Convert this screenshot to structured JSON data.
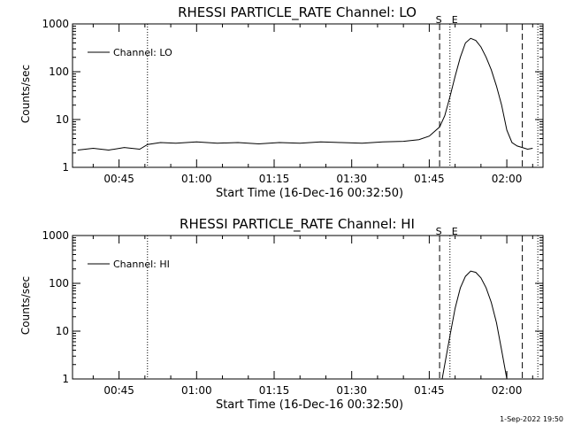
{
  "footer_timestamp": "1-Sep-2022 19:50",
  "chart_data": [
    {
      "type": "line",
      "title": "RHESSI PARTICLE_RATE Channel: LO",
      "xlabel": "Start Time (16-Dec-16 00:32:50)",
      "ylabel": "Counts/sec",
      "yscale": "log",
      "xlim": [
        "00:36",
        "02:07"
      ],
      "ylim": [
        1,
        1000
      ],
      "x_ticks": [
        "00:45",
        "01:00",
        "01:15",
        "01:30",
        "01:45",
        "02:00"
      ],
      "y_ticks": [
        "1",
        "10",
        "100",
        "1000"
      ],
      "grid": false,
      "legend_position": "top-left",
      "series": [
        {
          "name": "Channel: LO",
          "x": [
            "00:37",
            "00:40",
            "00:43",
            "00:46",
            "00:49",
            "00:50:30",
            "00:53",
            "00:56",
            "01:00",
            "01:04",
            "01:08",
            "01:12",
            "01:16",
            "01:20",
            "01:24",
            "01:28",
            "01:32",
            "01:36",
            "01:40",
            "01:43",
            "01:45",
            "01:47",
            "01:48",
            "01:49",
            "01:50",
            "01:51",
            "01:52",
            "01:53",
            "01:54",
            "01:55",
            "01:56",
            "01:57",
            "01:58",
            "01:59",
            "02:00",
            "02:01",
            "02:02",
            "02:03",
            "02:04",
            "02:05"
          ],
          "y": [
            2.3,
            2.5,
            2.3,
            2.6,
            2.4,
            3.0,
            3.3,
            3.2,
            3.4,
            3.2,
            3.3,
            3.1,
            3.3,
            3.2,
            3.4,
            3.3,
            3.2,
            3.4,
            3.5,
            3.8,
            4.5,
            7,
            12,
            30,
            80,
            200,
            400,
            500,
            450,
            330,
            200,
            110,
            50,
            20,
            6,
            3.3,
            2.8,
            2.6,
            2.4,
            2.5
          ]
        }
      ],
      "vertical_markers": [
        {
          "time": "00:50:30",
          "style": "dotted"
        },
        {
          "time": "01:47",
          "style": "dashed",
          "label": "S"
        },
        {
          "time": "01:49",
          "style": "dotted",
          "label": "E"
        },
        {
          "time": "02:03",
          "style": "dashed"
        },
        {
          "time": "02:06",
          "style": "dotted"
        }
      ]
    },
    {
      "type": "line",
      "title": "RHESSI PARTICLE_RATE Channel: HI",
      "xlabel": "Start Time (16-Dec-16 00:32:50)",
      "ylabel": "Counts/sec",
      "yscale": "log",
      "xlim": [
        "00:36",
        "02:07"
      ],
      "ylim": [
        1,
        1000
      ],
      "x_ticks": [
        "00:45",
        "01:00",
        "01:15",
        "01:30",
        "01:45",
        "02:00"
      ],
      "y_ticks": [
        "1",
        "10",
        "100",
        "1000"
      ],
      "grid": false,
      "legend_position": "top-left",
      "series": [
        {
          "name": "Channel: HI",
          "x": [
            "01:47:30",
            "01:48",
            "01:49",
            "01:50",
            "01:51",
            "01:52",
            "01:53",
            "01:54",
            "01:55",
            "01:56",
            "01:57",
            "01:58",
            "01:59",
            "02:00"
          ],
          "y": [
            1,
            2,
            8,
            30,
            80,
            140,
            180,
            170,
            130,
            80,
            40,
            15,
            4,
            1
          ]
        }
      ],
      "vertical_markers": [
        {
          "time": "00:50:30",
          "style": "dotted"
        },
        {
          "time": "01:47",
          "style": "dashed",
          "label": "S"
        },
        {
          "time": "01:49",
          "style": "dotted",
          "label": "E"
        },
        {
          "time": "02:03",
          "style": "dashed"
        },
        {
          "time": "02:06",
          "style": "dotted"
        }
      ]
    }
  ]
}
